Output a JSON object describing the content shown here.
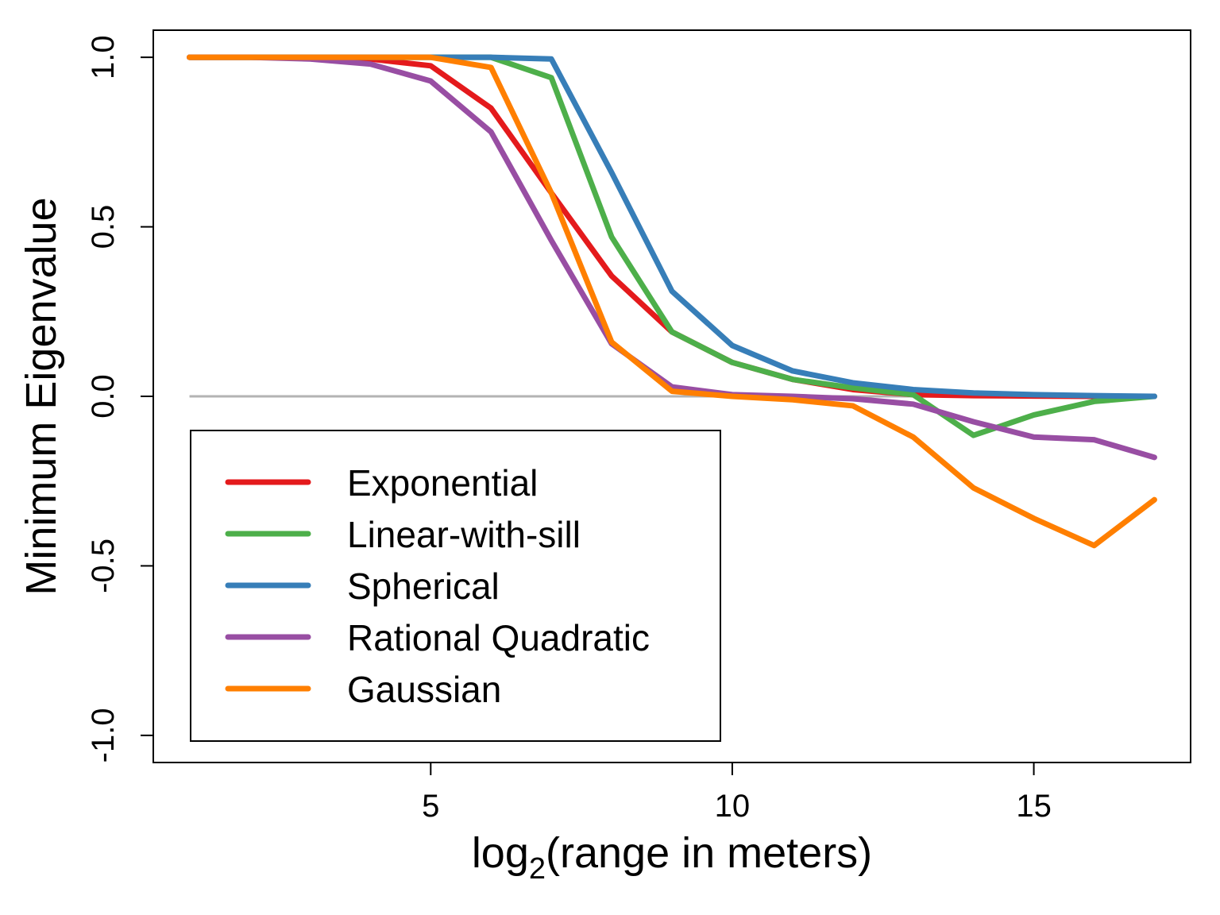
{
  "chart_data": {
    "type": "line",
    "title": "",
    "xlabel_base": "log",
    "xlabel_sub": "2",
    "xlabel_rest": "(range in meters)",
    "ylabel": "Minimum Eigenvalue",
    "xlim": [
      0.4,
      17.6
    ],
    "ylim": [
      -1.08,
      1.08
    ],
    "xticks": [
      5,
      10,
      15
    ],
    "yticks": [
      -1.0,
      -0.5,
      0.0,
      0.5,
      1.0
    ],
    "ytick_labels": [
      "-1.0",
      "-0.5",
      "0.0",
      "0.5",
      "1.0"
    ],
    "reference_line": {
      "y": 0.0,
      "color": "#b3b3b3"
    },
    "legend_position": "bottom-left",
    "x": [
      1,
      2,
      3,
      4,
      5,
      6,
      7,
      8,
      9,
      10,
      11,
      12,
      13,
      14,
      15,
      16,
      17
    ],
    "series": [
      {
        "name": "Exponential",
        "color": "#e41a1c",
        "values": [
          1.0,
          1.0,
          1.0,
          0.995,
          0.975,
          0.85,
          0.6,
          0.355,
          0.19,
          0.1,
          0.05,
          0.02,
          0.005,
          0.002,
          0.001,
          0.0,
          0.0
        ]
      },
      {
        "name": "Linear-with-sill",
        "color": "#4daf4a",
        "values": [
          1.0,
          1.0,
          1.0,
          1.0,
          1.0,
          1.0,
          0.94,
          0.47,
          0.19,
          0.1,
          0.05,
          0.025,
          0.005,
          -0.115,
          -0.055,
          -0.015,
          0.0
        ]
      },
      {
        "name": "Spherical",
        "color": "#377eb8",
        "values": [
          1.0,
          1.0,
          1.0,
          1.0,
          1.0,
          1.0,
          0.995,
          0.66,
          0.31,
          0.15,
          0.075,
          0.04,
          0.02,
          0.01,
          0.005,
          0.002,
          0.0
        ]
      },
      {
        "name": "Rational Quadratic",
        "color": "#984ea3",
        "values": [
          1.0,
          1.0,
          0.995,
          0.98,
          0.93,
          0.78,
          0.46,
          0.155,
          0.028,
          0.005,
          0.0,
          -0.007,
          -0.023,
          -0.075,
          -0.12,
          -0.128,
          -0.18
        ]
      },
      {
        "name": "Gaussian",
        "color": "#ff7f00",
        "values": [
          1.0,
          1.0,
          1.0,
          1.0,
          1.0,
          0.97,
          0.6,
          0.16,
          0.015,
          0.0,
          -0.01,
          -0.028,
          -0.12,
          -0.27,
          -0.36,
          -0.44,
          -0.305
        ]
      }
    ]
  }
}
